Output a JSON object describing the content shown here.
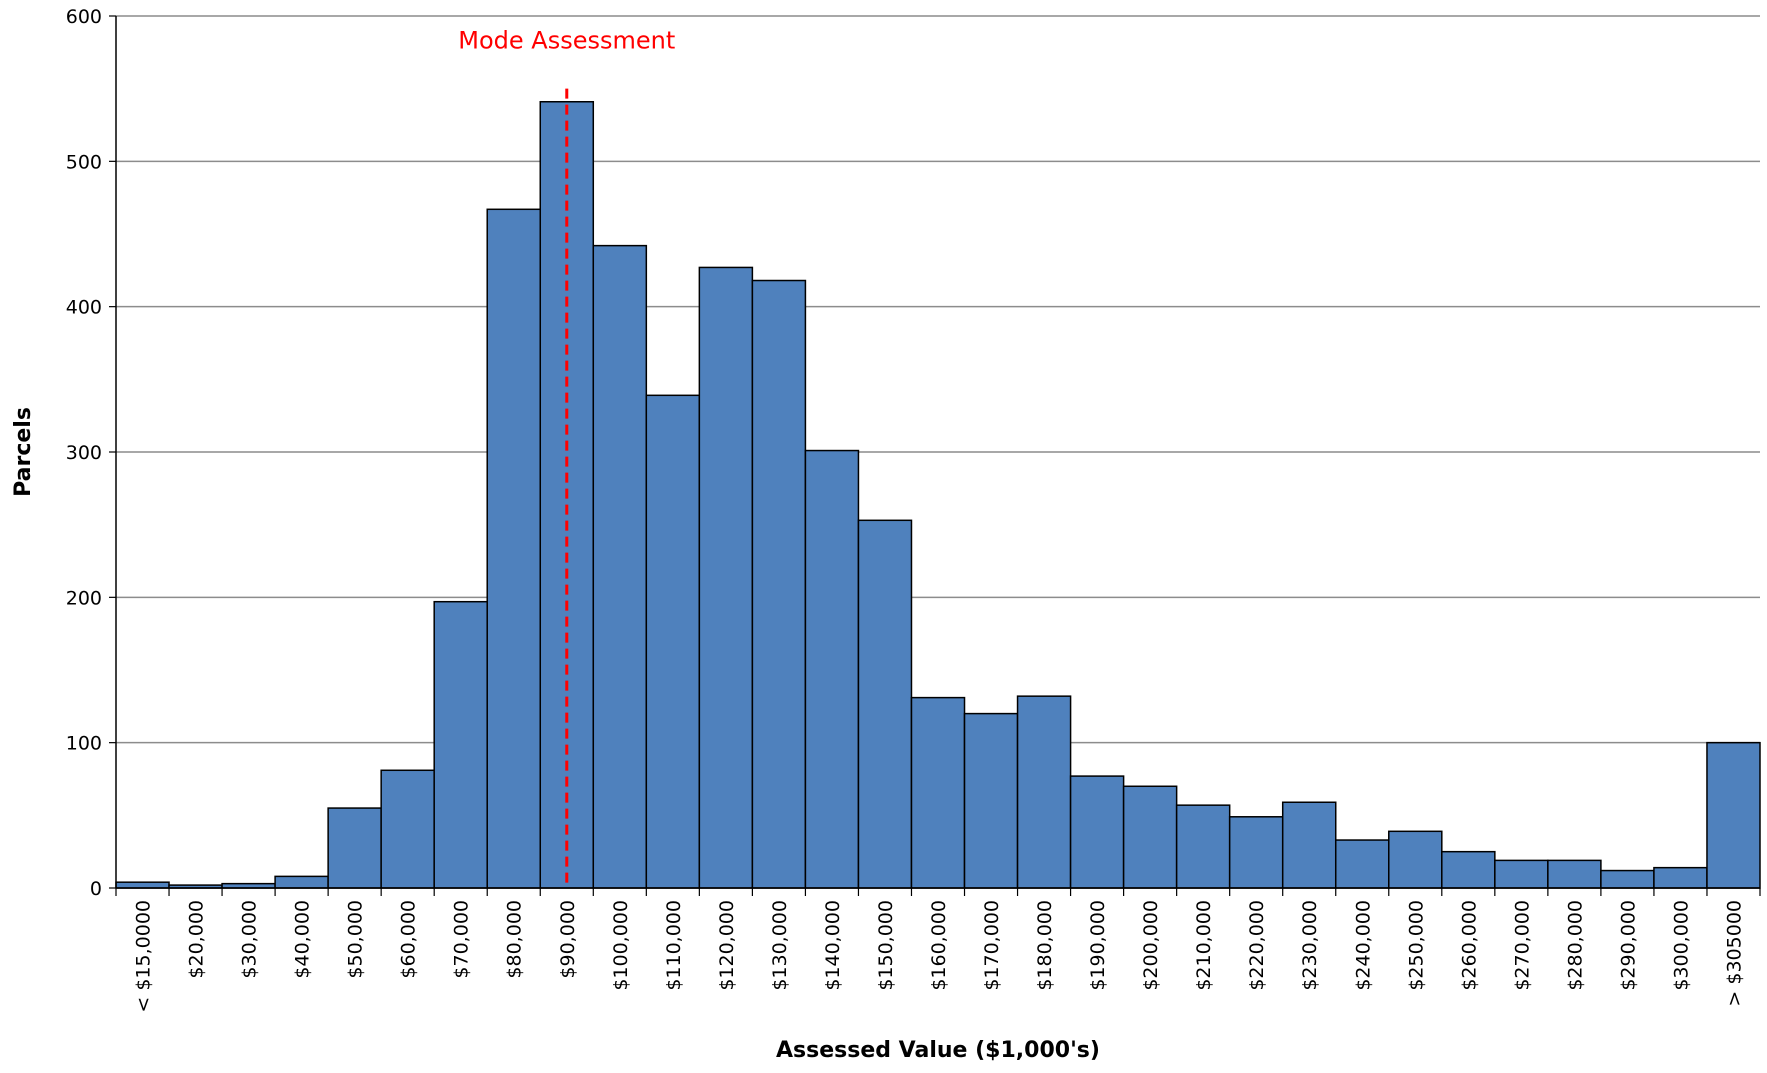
{
  "chart_data": {
    "type": "bar",
    "x_label": "Assessed Value ($1,000's)",
    "y_label": "Parcels",
    "categories": [
      "< $15,0000",
      "$20,000",
      "$30,000",
      "$40,000",
      "$50,000",
      "$60,000",
      "$70,000",
      "$80,000",
      "$90,000",
      "$100,000",
      "$110,000",
      "$120,000",
      "$130,000",
      "$140,000",
      "$150,000",
      "$160,000",
      "$170,000",
      "$180,000",
      "$190,000",
      "$200,000",
      "$210,000",
      "$220,000",
      "$230,000",
      "$240,000",
      "$250,000",
      "$260,000",
      "$270,000",
      "$280,000",
      "$290,000",
      "$300,000",
      "> $305000"
    ],
    "values": [
      4,
      2,
      3,
      8,
      55,
      81,
      197,
      467,
      541,
      442,
      339,
      427,
      418,
      301,
      253,
      131,
      120,
      132,
      77,
      70,
      57,
      49,
      59,
      33,
      39,
      25,
      19,
      19,
      12,
      14,
      100
    ],
    "color": "#4f81bd",
    "ylim": [
      0,
      600
    ],
    "yticks": [
      0,
      100,
      200,
      300,
      400,
      500,
      600
    ],
    "grid": true,
    "annotations": [
      {
        "text": "Mode Assessment",
        "x": "$90,000",
        "y": 550,
        "color": "#ff0000"
      }
    ]
  }
}
